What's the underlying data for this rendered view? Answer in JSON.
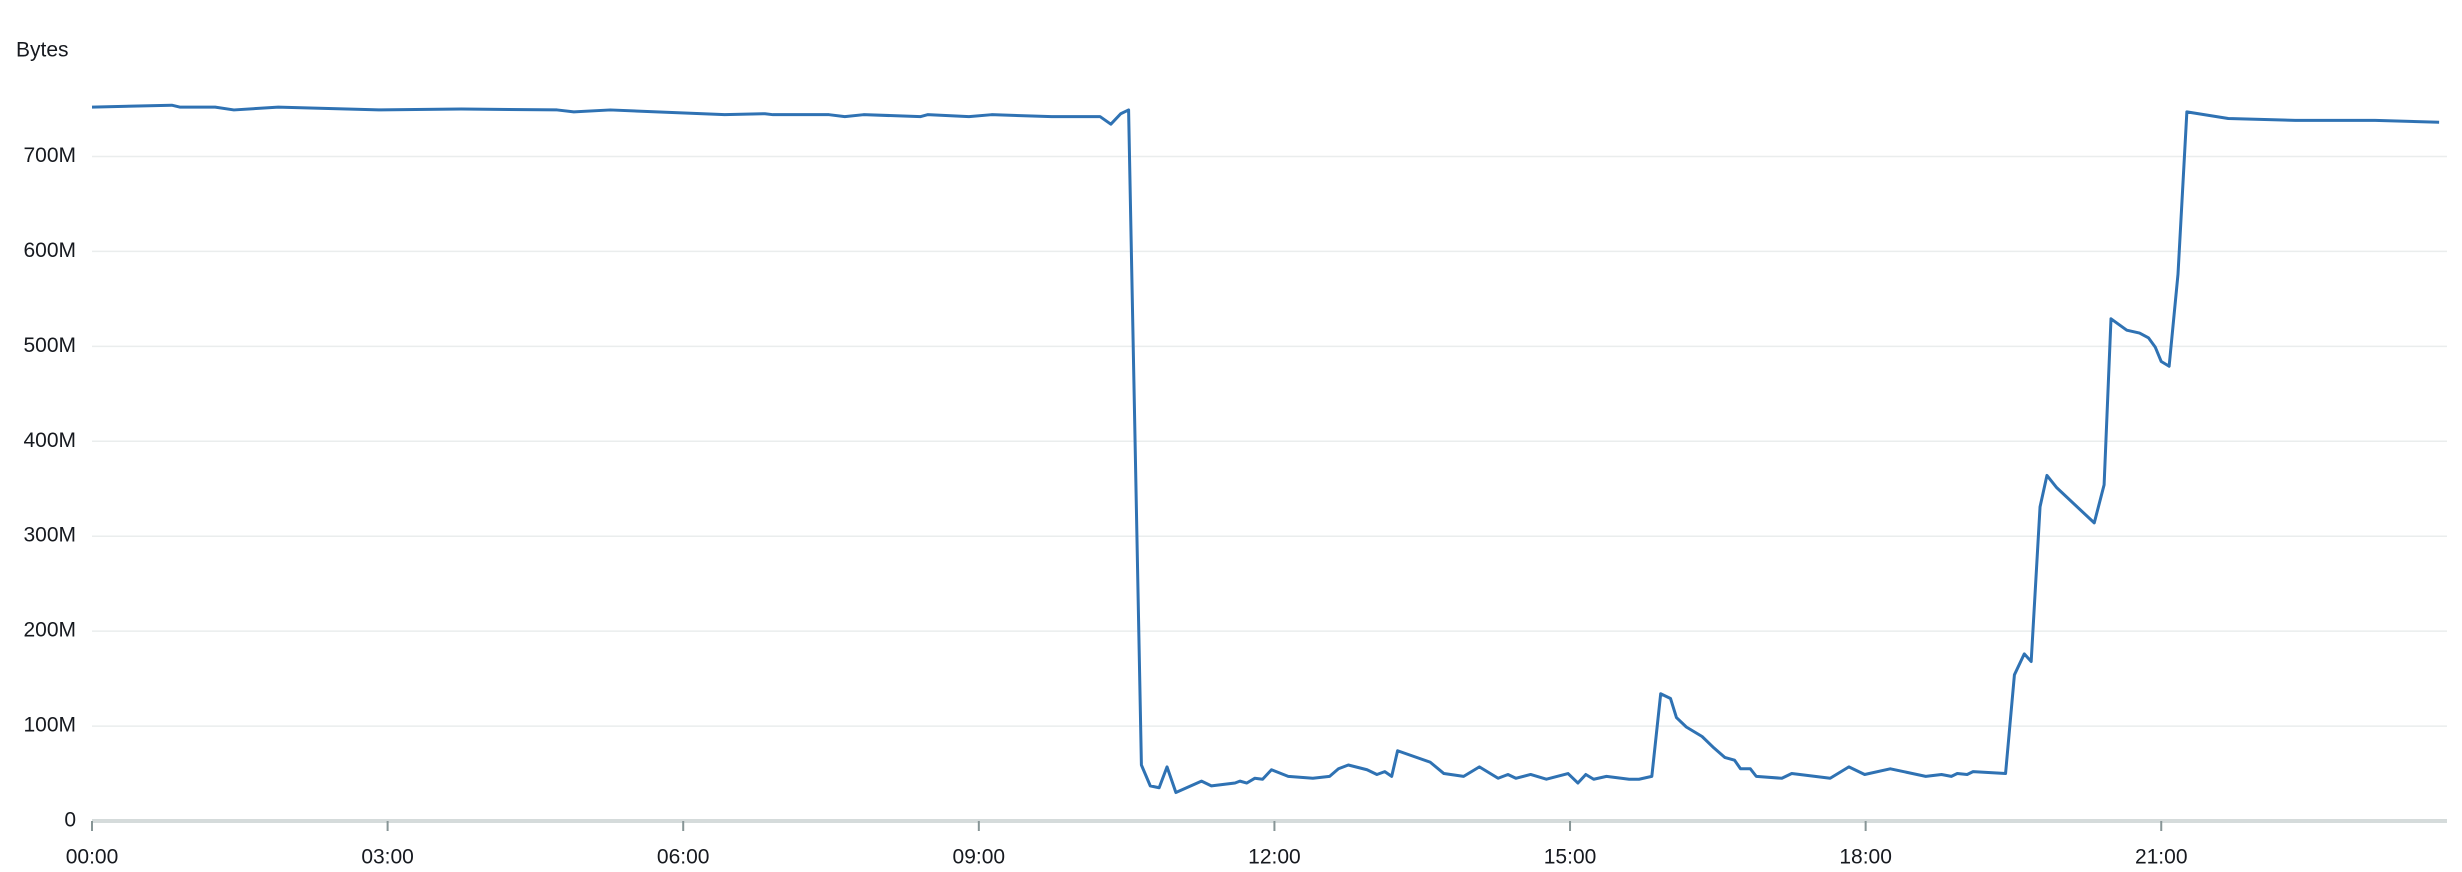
{
  "chart_data": {
    "type": "line",
    "ylabel": "Bytes",
    "x": [
      0,
      0.81,
      0.89,
      1.25,
      1.44,
      1.89,
      2.91,
      3.75,
      4.72,
      4.89,
      5.26,
      6.42,
      6.83,
      6.91,
      7.48,
      7.64,
      7.83,
      8.41,
      8.48,
      8.9,
      9.13,
      9.74,
      10.23,
      10.34,
      10.44,
      10.52,
      10.65,
      10.74,
      10.83,
      10.91,
      11.0,
      11.26,
      11.36,
      11.6,
      11.65,
      11.72,
      11.8,
      11.88,
      11.97,
      12.14,
      12.39,
      12.56,
      12.65,
      12.75,
      12.94,
      13.04,
      13.12,
      13.19,
      13.25,
      13.58,
      13.72,
      13.92,
      14.08,
      14.27,
      14.37,
      14.45,
      14.6,
      14.76,
      14.98,
      15.08,
      15.16,
      15.24,
      15.37,
      15.6,
      15.7,
      15.83,
      15.92,
      16.02,
      16.08,
      16.18,
      16.34,
      16.46,
      16.57,
      16.67,
      16.73,
      16.83,
      16.89,
      17.15,
      17.25,
      17.64,
      17.83,
      17.99,
      18.25,
      18.61,
      18.77,
      18.87,
      18.93,
      19.03,
      19.09,
      19.42,
      19.51,
      19.61,
      19.68,
      19.77,
      19.84,
      19.94,
      20.32,
      20.42,
      20.49,
      20.65,
      20.78,
      20.87,
      20.94,
      21.0,
      21.08,
      21.17,
      21.26,
      21.68,
      22.36,
      23.17,
      23.82
    ],
    "series": [
      {
        "name": "Bytes",
        "color": "#2f72b3",
        "values": [
          752,
          754,
          752,
          752,
          749,
          752,
          749,
          750,
          749,
          747,
          749,
          744,
          745,
          744,
          744,
          742,
          744,
          742,
          744,
          742,
          744,
          742,
          742,
          734,
          745,
          749,
          59,
          37,
          35,
          57,
          30,
          42,
          37,
          40,
          42,
          40,
          45,
          44,
          54,
          47,
          45,
          47,
          55,
          59,
          54,
          49,
          52,
          47,
          74,
          62,
          50,
          47,
          57,
          45,
          49,
          45,
          49,
          44,
          50,
          40,
          49,
          44,
          47,
          44,
          44,
          47,
          134,
          129,
          109,
          99,
          89,
          77,
          67,
          64,
          55,
          55,
          47,
          45,
          50,
          45,
          57,
          49,
          55,
          47,
          49,
          47,
          50,
          49,
          52,
          50,
          154,
          176,
          168,
          331,
          364,
          351,
          314,
          354,
          529,
          517,
          514,
          509,
          499,
          484,
          479,
          576,
          747,
          740,
          738,
          738,
          736
        ]
      }
    ],
    "xlim": [
      0,
      23.9
    ],
    "xticks": [
      {
        "value": 0,
        "label": "00:00"
      },
      {
        "value": 3,
        "label": "03:00"
      },
      {
        "value": 6,
        "label": "06:00"
      },
      {
        "value": 9,
        "label": "09:00"
      },
      {
        "value": 12,
        "label": "12:00"
      },
      {
        "value": 15,
        "label": "15:00"
      },
      {
        "value": 18,
        "label": "18:00"
      },
      {
        "value": 21,
        "label": "21:00"
      }
    ],
    "ylim": [
      0,
      770
    ],
    "yticks": [
      0,
      {
        "value": 100,
        "label": "100M"
      },
      {
        "value": 200,
        "label": "200M"
      },
      {
        "value": 300,
        "label": "300M"
      },
      {
        "value": 400,
        "label": "400M"
      },
      {
        "value": 500,
        "label": "500M"
      },
      {
        "value": 600,
        "label": "600M"
      },
      {
        "value": 700,
        "label": "700M"
      }
    ],
    "grid": true
  }
}
